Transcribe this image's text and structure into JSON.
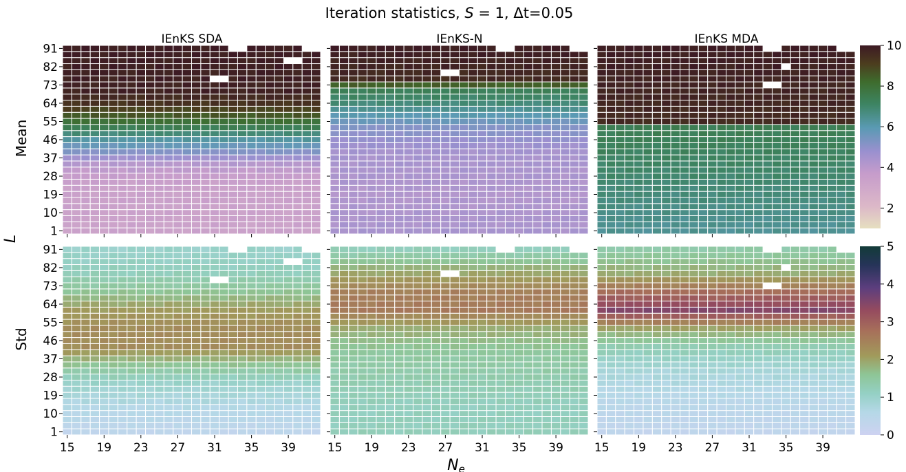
{
  "figure": {
    "title_prefix": "Iteration statistics, ",
    "title_S": "S",
    "title_eq": " = 1, Δt=0.05",
    "xlabel_main": "N",
    "xlabel_sub": "e",
    "ylabel": "L",
    "row_labels": [
      "Mean",
      "Std"
    ]
  },
  "chart_data": {
    "type": "heatmap",
    "panels": [
      "IEnKS SDA",
      "IEnKS-N",
      "IEnKS MDA"
    ],
    "rows": [
      "Mean",
      "Std"
    ],
    "x": [
      15,
      16,
      17,
      18,
      19,
      20,
      21,
      22,
      23,
      24,
      25,
      26,
      27,
      28,
      29,
      30,
      31,
      32,
      33,
      34,
      35,
      36,
      37,
      38,
      39,
      40,
      41,
      42
    ],
    "x_tick_labels": [
      "15",
      "19",
      "23",
      "27",
      "31",
      "35",
      "39"
    ],
    "y": [
      1,
      4,
      7,
      10,
      13,
      16,
      19,
      22,
      25,
      28,
      31,
      34,
      37,
      40,
      43,
      46,
      49,
      52,
      55,
      58,
      61,
      64,
      67,
      70,
      73,
      76,
      79,
      82,
      85,
      88,
      91
    ],
    "y_tick_labels": [
      "1",
      "10",
      "19",
      "28",
      "37",
      "46",
      "55",
      "64",
      "73",
      "82",
      "91"
    ],
    "max_L": [
      91,
      91,
      91,
      91,
      91,
      91,
      91,
      91,
      91,
      91,
      91,
      91,
      91,
      91,
      91,
      91,
      91,
      91,
      88,
      88,
      91,
      91,
      91,
      91,
      91,
      91,
      88,
      88
    ],
    "missing_cells": {
      "IEnKS SDA": [
        [
          31,
          76
        ],
        [
          32,
          76
        ],
        [
          39,
          85
        ],
        [
          40,
          85
        ]
      ],
      "IEnKS-N": [
        [
          27,
          79
        ],
        [
          28,
          79
        ]
      ],
      "IEnKS MDA": [
        [
          33,
          73
        ],
        [
          34,
          73
        ],
        [
          35,
          82
        ]
      ]
    },
    "colorbars": [
      {
        "row": "Mean",
        "range": [
          1,
          10
        ],
        "ticks": [
          "2",
          "4",
          "6",
          "8",
          "10"
        ]
      },
      {
        "row": "Std",
        "range": [
          0,
          5
        ],
        "ticks": [
          "0",
          "1",
          "2",
          "3",
          "4",
          "5"
        ]
      }
    ],
    "mean_profile": {
      "IEnKS SDA": {
        "L": [
          1,
          22,
          28,
          34,
          40,
          46,
          52,
          58,
          64,
          70,
          91
        ],
        "value": [
          3.3,
          3.4,
          3.6,
          4.1,
          5.2,
          6.2,
          7.4,
          8.6,
          9.4,
          9.8,
          9.9
        ]
      },
      "IEnKS-N": {
        "L": [
          1,
          19,
          40,
          52,
          58,
          64,
          70,
          76,
          91
        ],
        "value": [
          4.4,
          4.2,
          4.5,
          5.2,
          6.0,
          6.8,
          7.3,
          9.6,
          9.9
        ]
      },
      "IEnKS MDA": {
        "L": [
          1,
          46,
          52,
          55,
          91
        ],
        "value": [
          6.4,
          7.3,
          7.4,
          9.6,
          9.9
        ]
      }
    },
    "std_profile": {
      "IEnKS SDA": {
        "L": [
          1,
          13,
          25,
          34,
          43,
          52,
          61,
          70,
          79,
          91
        ],
        "value": [
          0.35,
          0.6,
          1.0,
          1.6,
          2.3,
          2.3,
          2.1,
          1.6,
          1.2,
          1.0
        ]
      },
      "IEnKS-N": {
        "L": [
          1,
          13,
          25,
          40,
          52,
          61,
          70,
          82,
          91
        ],
        "value": [
          1.2,
          1.15,
          1.3,
          1.5,
          1.9,
          2.6,
          2.5,
          1.8,
          1.2
        ]
      },
      "IEnKS MDA": {
        "L": [
          1,
          16,
          31,
          43,
          52,
          61,
          70,
          79,
          91
        ],
        "value": [
          0.3,
          0.5,
          0.8,
          1.3,
          2.0,
          3.5,
          2.8,
          1.9,
          1.4
        ]
      }
    }
  }
}
